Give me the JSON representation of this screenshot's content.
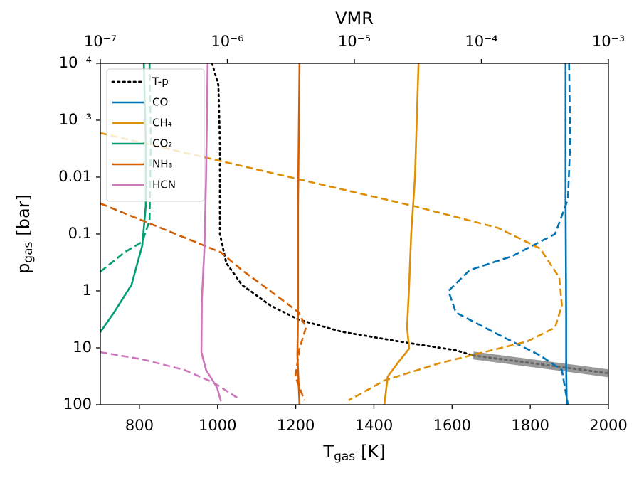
{
  "chart_data": {
    "type": "line",
    "xlabel": [
      "T",
      "gas",
      "[K]"
    ],
    "x2label": "VMR",
    "ylabel": [
      "p",
      "gas",
      "[bar]"
    ],
    "xlim": [
      700,
      2000
    ],
    "xticks": [
      800,
      1000,
      1200,
      1400,
      1600,
      1800,
      2000
    ],
    "x2lim": [
      1e-07,
      0.001
    ],
    "x2scale": "log",
    "x2ticks": [
      {
        "value": 1e-07,
        "label": "10⁻⁷"
      },
      {
        "value": 1e-06,
        "label": "10⁻⁶"
      },
      {
        "value": 1e-05,
        "label": "10⁻⁵"
      },
      {
        "value": 0.0001,
        "label": "10⁻⁴"
      },
      {
        "value": 0.001,
        "label": "10⁻³"
      }
    ],
    "ylim": [
      100,
      0.0001
    ],
    "yscale": "log",
    "yticks": [
      {
        "value": 0.0001,
        "label": "10⁻⁴"
      },
      {
        "value": 0.001,
        "label": "10⁻³"
      },
      0.01,
      0.1,
      1,
      10,
      100
    ],
    "legend": "upper left",
    "series": [
      {
        "name": "T-p",
        "color": "#000000",
        "axis": "x",
        "lines": [
          {
            "style": "dotted",
            "x": [
              986,
              1002,
              1006,
              1006,
              1022,
              1062,
              1135,
              1208,
              1317,
              1463,
              1609,
              1654
            ],
            "y": [
              0.0001,
              0.00024,
              0.0024,
              0.1,
              0.32,
              0.78,
              1.8,
              3.2,
              5.2,
              7.7,
              11,
              13.6
            ]
          },
          {
            "style": "band",
            "color": "#999999",
            "x": [
              1654,
              2000
            ],
            "y": [
              13.6,
              28
            ]
          }
        ]
      },
      {
        "name": "CO",
        "color": "#0173b2",
        "axis": "x2",
        "lines": [
          {
            "style": "solid",
            "x": [
              0.00046,
              0.00046,
              0.000465,
              0.000465,
              0.00047
            ],
            "y": [
              0.0001,
              0.0245,
              3.2,
              24.5,
              100
            ]
          },
          {
            "style": "dashed",
            "x": [
              0.00049,
              0.0005,
              0.00048,
              0.00038,
              0.000175,
              8.1e-05,
              5.5e-05,
              6.3e-05,
              0.000135,
              0.00029,
              0.00043,
              0.00048
            ],
            "y": [
              0.0001,
              0.0024,
              0.0245,
              0.1,
              0.245,
              0.43,
              1.0,
              2.4,
              5.8,
              13.6,
              24.5,
              100
            ]
          }
        ]
      },
      {
        "name": "CH₄",
        "color": "#de8f05",
        "axis": "x2",
        "lines": [
          {
            "style": "solid",
            "x": [
              3.2e-05,
              3e-05,
              2.8e-05,
              2.7e-05,
              2.6e-05,
              2.7e-05,
              2.2e-05,
              1.83e-05,
              1.72e-05
            ],
            "y": [
              0.0001,
              0.01,
              0.1,
              0.78,
              4.4,
              10.3,
              18.3,
              32,
              100
            ]
          },
          {
            "style": "dashed",
            "x": [
              1e-07,
              2.9e-05,
              0.000135,
              0.00029,
              0.00041,
              0.00043,
              0.00038,
              0.00023,
              0.000105,
              4.8e-05,
              1.72e-05,
              9e-06
            ],
            "y": [
              0.00168,
              0.032,
              0.078,
              0.18,
              0.58,
              1.8,
              4.4,
              7.7,
              11.9,
              18.3,
              37.6,
              84
            ]
          }
        ]
      },
      {
        "name": "CO₂",
        "color": "#029e73",
        "axis": "x2",
        "lines": [
          {
            "style": "solid",
            "x": [
              2.2e-07,
              2.28e-07,
              2.28e-07,
              2.14e-07,
              1.76e-07,
              1.28e-07,
              1e-07
            ],
            "y": [
              0.0001,
              0.0024,
              0.032,
              0.158,
              0.78,
              2.4,
              5.3
            ]
          },
          {
            "style": "dashed",
            "x": [
              2.44e-07,
              2.5e-07,
              2.44e-07,
              2.14e-07,
              1.55e-07,
              1e-07
            ],
            "y": [
              0.0001,
              0.0024,
              0.058,
              0.137,
              0.21,
              0.46
            ]
          }
        ]
      },
      {
        "name": "NH₃",
        "color": "#d55e00",
        "axis": "x2",
        "lines": [
          {
            "style": "solid",
            "x": [
              3.7e-06,
              3.6e-06,
              3.6e-06,
              3.56e-06,
              3.7e-06
            ],
            "y": [
              0.0001,
              0.032,
              2.4,
              13.6,
              100
            ]
          },
          {
            "style": "dashed",
            "x": [
              1e-07,
              8.9e-07,
              1.3e-06,
              2.18e-06,
              3.66e-06,
              4.16e-06,
              3.7e-06,
              3.43e-06,
              4.05e-06
            ],
            "y": [
              0.029,
              0.21,
              0.43,
              1.0,
              2.4,
              4.4,
              10.3,
              32,
              84
            ]
          }
        ]
      },
      {
        "name": "HCN",
        "color": "#cc78bc",
        "axis": "x2",
        "lines": [
          {
            "style": "solid",
            "x": [
              7e-07,
              6.8e-07,
              6.6e-07,
              6.3e-07,
              6.25e-07,
              6.8e-07,
              8.3e-07,
              8.9e-07
            ],
            "y": [
              0.0001,
              0.01,
              0.18,
              1.4,
              11.9,
              24.5,
              50,
              87
            ]
          },
          {
            "style": "dashed",
            "x": [
              1e-07,
              2.14e-07,
              4.6e-07,
              7.8e-07,
              1.25e-06
            ],
            "y": [
              11.9,
              15.9,
              24.5,
              41,
              80
            ]
          }
        ]
      }
    ]
  }
}
